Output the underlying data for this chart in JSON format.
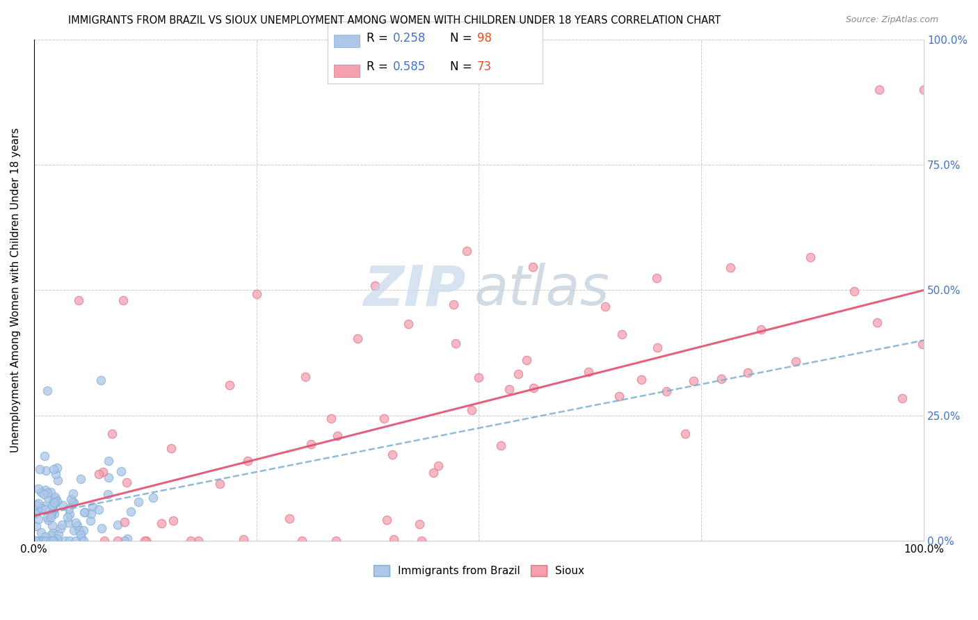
{
  "title": "IMMIGRANTS FROM BRAZIL VS SIOUX UNEMPLOYMENT AMONG WOMEN WITH CHILDREN UNDER 18 YEARS CORRELATION CHART",
  "source": "Source: ZipAtlas.com",
  "ylabel": "Unemployment Among Women with Children Under 18 years",
  "brazil_R": 0.258,
  "brazil_N": 98,
  "sioux_R": 0.585,
  "sioux_N": 73,
  "xmin": 0,
  "xmax": 100,
  "ymin": 0,
  "ymax": 100,
  "background_color": "#ffffff",
  "grid_color": "#cccccc",
  "right_tick_color": "#4472c4",
  "brazil_face_color": "#aec6e8",
  "brazil_edge_color": "#7bafd4",
  "sioux_face_color": "#f4a0b0",
  "sioux_edge_color": "#e07080",
  "brazil_line_color": "#7bafd4",
  "sioux_line_color": "#e05070",
  "legend_R_color": "#4472c4",
  "legend_N_color": "#e05020",
  "watermark_zip_color": "#c8d8ec",
  "watermark_atlas_color": "#c0ccd8"
}
